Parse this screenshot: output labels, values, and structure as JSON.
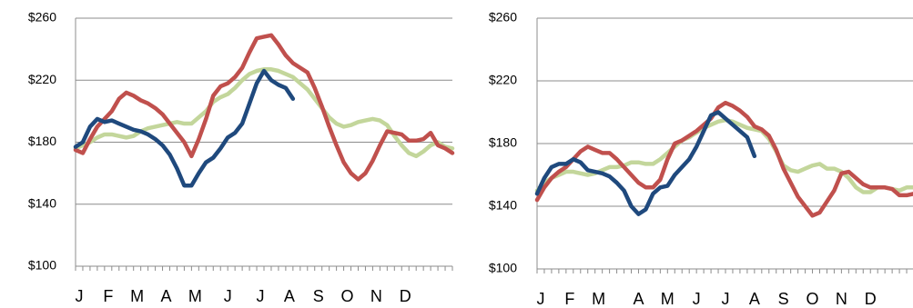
{
  "chart_data": [
    {
      "type": "line",
      "x": [
        0,
        1,
        2,
        3,
        4,
        5,
        6,
        7,
        8,
        9,
        10,
        11,
        12,
        13,
        14,
        15,
        16,
        17,
        18,
        19,
        20,
        21,
        22,
        23,
        24,
        25,
        26,
        27,
        28,
        29,
        30,
        31,
        32,
        33,
        34,
        35,
        36,
        37,
        38,
        39,
        40,
        41,
        42,
        43,
        44,
        45,
        46,
        47,
        48,
        49,
        50,
        51,
        52
      ],
      "xlim": [
        0,
        52
      ],
      "xticks": [
        {
          "value": 0.5,
          "label": "J"
        },
        {
          "value": 4.5,
          "label": "F"
        },
        {
          "value": 8.5,
          "label": "M"
        },
        {
          "value": 12.5,
          "label": "A"
        },
        {
          "value": 16.5,
          "label": "M"
        },
        {
          "value": 21,
          "label": "J"
        },
        {
          "value": 25.5,
          "label": "J"
        },
        {
          "value": 29.5,
          "label": "A"
        },
        {
          "value": 33.5,
          "label": "S"
        },
        {
          "value": 37.5,
          "label": "O"
        },
        {
          "value": 41.5,
          "label": "N"
        },
        {
          "value": 45.5,
          "label": "D"
        }
      ],
      "ylim": [
        100,
        260
      ],
      "yticks": [
        {
          "value": 100,
          "label": "$100"
        },
        {
          "value": 140,
          "label": "$140"
        },
        {
          "value": 180,
          "label": "$180"
        },
        {
          "value": 220,
          "label": "$220"
        },
        {
          "value": 260,
          "label": "$260"
        }
      ],
      "grid": true,
      "series": [
        {
          "color": "#c3d69b",
          "values": [
            176,
            178,
            180,
            183,
            185,
            185,
            184,
            183,
            184,
            187,
            189,
            190,
            191,
            192,
            193,
            192,
            192,
            196,
            200,
            206,
            209,
            211,
            215,
            220,
            224,
            226,
            227,
            227,
            226,
            224,
            222,
            218,
            214,
            208,
            202,
            196,
            192,
            190,
            191,
            193,
            194,
            195,
            194,
            191,
            184,
            178,
            173,
            171,
            174,
            178,
            180,
            177,
            176
          ]
        },
        {
          "color": "#c0504d",
          "values": [
            175,
            173,
            182,
            190,
            195,
            200,
            208,
            212,
            210,
            207,
            205,
            202,
            198,
            192,
            186,
            180,
            171,
            182,
            195,
            210,
            216,
            218,
            222,
            228,
            238,
            247,
            248,
            249,
            243,
            236,
            231,
            228,
            225,
            215,
            203,
            190,
            178,
            167,
            160,
            156,
            160,
            168,
            178,
            187,
            186,
            185,
            181,
            181,
            182,
            186,
            178,
            176,
            173
          ]
        },
        {
          "color": "#1f497d",
          "values": [
            177,
            180,
            190,
            195,
            193,
            194,
            192,
            190,
            188,
            187,
            185,
            182,
            178,
            172,
            163,
            152,
            152,
            160,
            167,
            170,
            176,
            183,
            186,
            192,
            205,
            218,
            226,
            220,
            217,
            215,
            208,
            null,
            null,
            null,
            null,
            null,
            null,
            null,
            null,
            null,
            null,
            null,
            null,
            null,
            null,
            null,
            null,
            null,
            null,
            null,
            null,
            null,
            null
          ]
        }
      ]
    },
    {
      "type": "line",
      "x": [
        0,
        1,
        2,
        3,
        4,
        5,
        6,
        7,
        8,
        9,
        10,
        11,
        12,
        13,
        14,
        15,
        16,
        17,
        18,
        19,
        20,
        21,
        22,
        23,
        24,
        25,
        26,
        27,
        28,
        29,
        30,
        31,
        32,
        33,
        34,
        35,
        36,
        37,
        38,
        39,
        40,
        41,
        42,
        43,
        44,
        45,
        46,
        47,
        48,
        49,
        50,
        51,
        52
      ],
      "xlim": [
        0,
        52
      ],
      "xticks": [
        {
          "value": 0.5,
          "label": "J"
        },
        {
          "value": 4.5,
          "label": "F"
        },
        {
          "value": 8.5,
          "label": "M"
        },
        {
          "value": 14,
          "label": "A"
        },
        {
          "value": 18,
          "label": "M"
        },
        {
          "value": 22,
          "label": "J"
        },
        {
          "value": 26,
          "label": "J"
        },
        {
          "value": 30,
          "label": "A"
        },
        {
          "value": 34,
          "label": "S"
        },
        {
          "value": 38,
          "label": "O"
        },
        {
          "value": 42,
          "label": "N"
        },
        {
          "value": 46,
          "label": "D"
        }
      ],
      "ylim": [
        100,
        260
      ],
      "yticks": [
        {
          "value": 100,
          "label": "$100"
        },
        {
          "value": 140,
          "label": "$140"
        },
        {
          "value": 180,
          "label": "$180"
        },
        {
          "value": 220,
          "label": "$220"
        },
        {
          "value": 260,
          "label": "$260"
        }
      ],
      "grid": true,
      "series": [
        {
          "color": "#c3d69b",
          "values": [
            150,
            155,
            158,
            160,
            162,
            162,
            161,
            160,
            161,
            163,
            165,
            165,
            166,
            168,
            168,
            167,
            167,
            170,
            174,
            178,
            182,
            184,
            187,
            190,
            192,
            194,
            195,
            194,
            192,
            190,
            189,
            188,
            183,
            175,
            166,
            163,
            162,
            164,
            166,
            167,
            164,
            164,
            162,
            158,
            152,
            149,
            149,
            152,
            152,
            151,
            150,
            152,
            152
          ]
        },
        {
          "color": "#c0504d",
          "values": [
            144,
            152,
            158,
            162,
            165,
            170,
            175,
            178,
            176,
            174,
            174,
            170,
            165,
            160,
            155,
            152,
            152,
            157,
            170,
            180,
            182,
            185,
            188,
            192,
            196,
            203,
            206,
            204,
            201,
            197,
            191,
            189,
            185,
            176,
            164,
            155,
            146,
            140,
            134,
            136,
            143,
            150,
            161,
            162,
            158,
            154,
            152,
            152,
            152,
            151,
            147,
            147,
            148
          ]
        },
        {
          "color": "#1f497d",
          "values": [
            148,
            158,
            165,
            167,
            167,
            170,
            168,
            163,
            162,
            161,
            159,
            155,
            150,
            140,
            135,
            138,
            148,
            152,
            153,
            160,
            165,
            170,
            178,
            188,
            198,
            200,
            196,
            192,
            188,
            184,
            172,
            null,
            null,
            null,
            null,
            null,
            null,
            null,
            null,
            null,
            null,
            null,
            null,
            null,
            null,
            null,
            null,
            null,
            null,
            null,
            null,
            null,
            null
          ]
        }
      ]
    }
  ]
}
